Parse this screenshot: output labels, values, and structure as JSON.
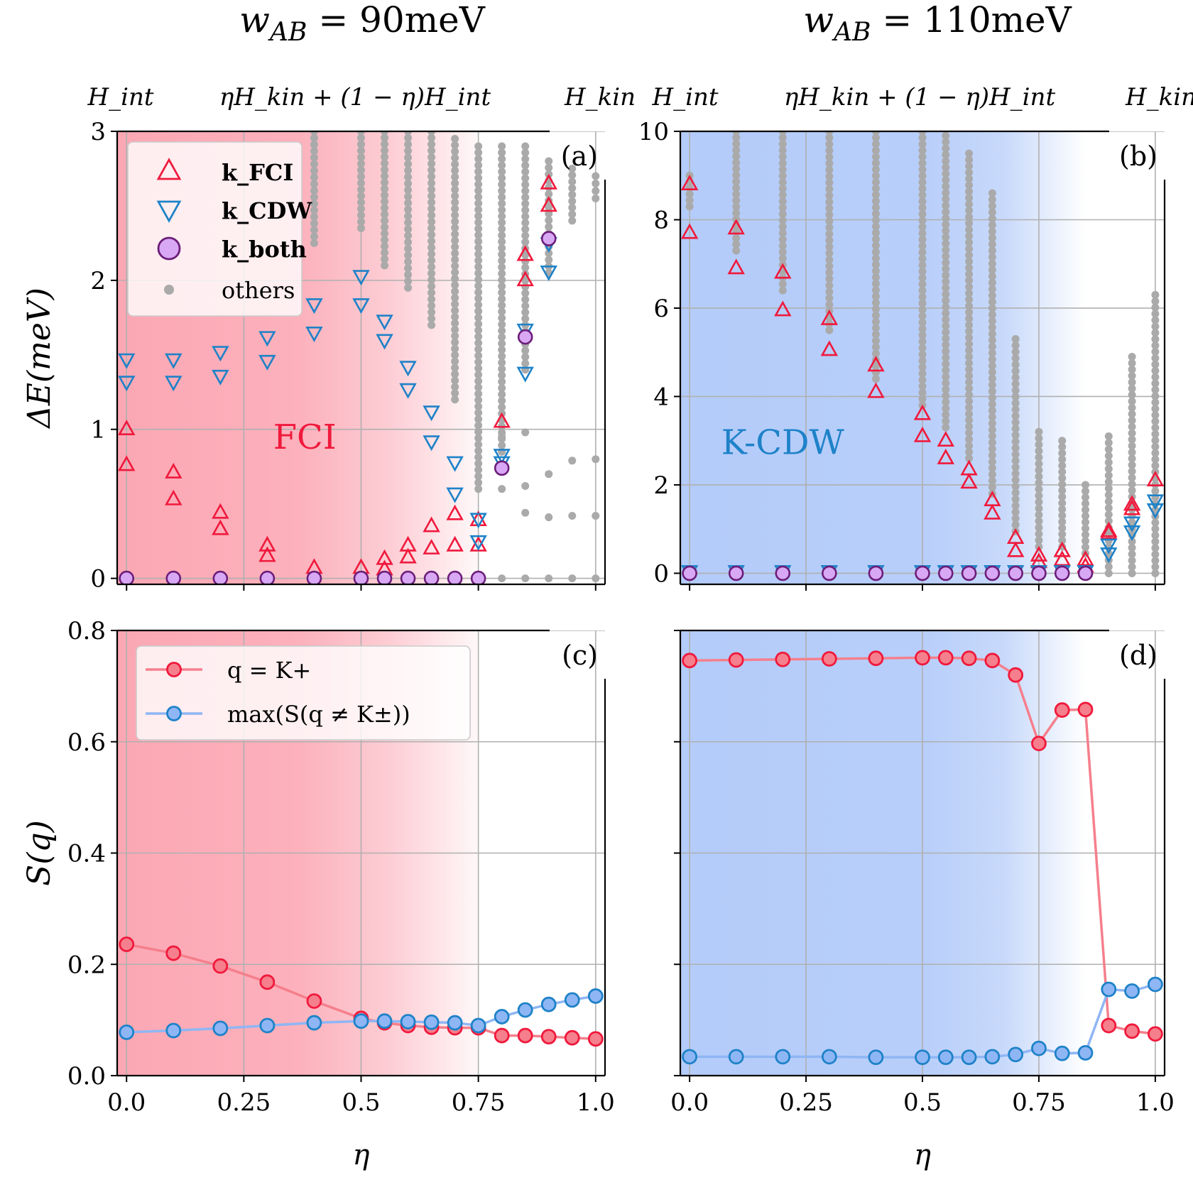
{
  "headers": {
    "left_title": "w_AB = 90meV",
    "right_title": "w_AB = 110meV",
    "left": {
      "pre": "w",
      "sub": "AB",
      "post": " = 90meV"
    },
    "right": {
      "pre": "w",
      "sub": "AB",
      "post": " = 110meV"
    },
    "h_int": "H_int",
    "h_mix": "ηH_kin + (1 − η)H_int",
    "h_kin": "H_kin"
  },
  "colors": {
    "fci": "#f0193c",
    "cdw": "#1e82c8",
    "both": "#6c1d7a",
    "both_fill": "#d8a8f4",
    "others": "#aaaaaa",
    "fci_shade": "#fba3b0",
    "cdw_shade": "#b0c9f9",
    "line_red": "#f57f8c",
    "line_blue": "#8fb6f4"
  },
  "chart_data": [
    {
      "panel": "(a)",
      "type": "scatter",
      "ylabel": "ΔE(meV)",
      "xlabel": "",
      "xlim": [
        -0.02,
        1.02
      ],
      "ylim": [
        -0.04,
        3.0
      ],
      "yticks": [
        0,
        1,
        2,
        3
      ],
      "xticks": [
        0,
        0.25,
        0.5,
        0.75,
        1.0
      ],
      "shade": {
        "label": "FCI",
        "from": 0.0,
        "to": 0.75,
        "kind": "fci"
      },
      "legend": [
        "k_FCI",
        "k_CDW",
        "k_both",
        "others"
      ],
      "series": [
        {
          "name": "k_FCI",
          "x": [
            0,
            0,
            0.1,
            0.1,
            0.2,
            0.2,
            0.3,
            0.3,
            0.4,
            0.5,
            0.55,
            0.55,
            0.6,
            0.6,
            0.65,
            0.65,
            0.7,
            0.7,
            0.75,
            0.75,
            0.8,
            0.85,
            0.85,
            0.9,
            0.9
          ],
          "y": [
            1.0,
            0.76,
            0.71,
            0.53,
            0.44,
            0.33,
            0.22,
            0.15,
            0.07,
            0.07,
            0.13,
            0.06,
            0.22,
            0.14,
            0.35,
            0.2,
            0.43,
            0.22,
            0.39,
            0.22,
            1.05,
            2.17,
            2.0,
            2.65,
            2.5
          ]
        },
        {
          "name": "k_CDW",
          "x": [
            0,
            0,
            0.1,
            0.1,
            0.2,
            0.2,
            0.3,
            0.3,
            0.4,
            0.4,
            0.5,
            0.5,
            0.55,
            0.55,
            0.6,
            0.6,
            0.65,
            0.65,
            0.7,
            0.7,
            0.75,
            0.75,
            0.8,
            0.8,
            0.85,
            0.85,
            0.9,
            0.9
          ],
          "y": [
            1.47,
            1.32,
            1.47,
            1.32,
            1.52,
            1.36,
            1.62,
            1.46,
            1.84,
            1.65,
            2.03,
            1.84,
            1.73,
            1.6,
            1.42,
            1.27,
            1.12,
            0.92,
            0.78,
            0.57,
            0.4,
            0.25,
            0.83,
            0.78,
            1.67,
            1.38,
            2.25,
            2.06
          ]
        },
        {
          "name": "k_both",
          "x": [
            0,
            0.1,
            0.2,
            0.3,
            0.4,
            0.5,
            0.55,
            0.6,
            0.65,
            0.7,
            0.75,
            0.8,
            0.85,
            0.9
          ],
          "y": [
            0,
            0,
            0,
            0,
            0,
            0,
            0,
            0,
            0,
            0,
            0,
            0.74,
            1.62,
            2.28
          ]
        }
      ],
      "others": [
        {
          "x": 0.4,
          "lo": 2.25,
          "hi": 3.0
        },
        {
          "x": 0.5,
          "lo": 2.35,
          "hi": 3.0
        },
        {
          "x": 0.55,
          "lo": 2.1,
          "hi": 3.0
        },
        {
          "x": 0.6,
          "lo": 1.95,
          "hi": 3.0
        },
        {
          "x": 0.65,
          "lo": 1.7,
          "hi": 3.0
        },
        {
          "x": 0.7,
          "lo": 1.2,
          "hi": 2.95
        },
        {
          "x": 0.75,
          "lo": 0.6,
          "hi": 2.9
        },
        {
          "x": 0.8,
          "lo": 0.85,
          "hi": 2.9
        },
        {
          "x": 0.85,
          "lo": 1.4,
          "hi": 2.9
        },
        {
          "x": 0.9,
          "lo": 2.05,
          "hi": 2.8
        },
        {
          "x": 0.95,
          "lo": 2.4,
          "hi": 2.75
        },
        {
          "x": 1.0,
          "lo": 2.55,
          "hi": 2.7
        }
      ],
      "others_points": [
        {
          "x": 0.8,
          "y": 0.95
        },
        {
          "x": 0.8,
          "y": 0.85
        },
        {
          "x": 0.8,
          "y": 0.6
        },
        {
          "x": 0.8,
          "y": 0.0
        },
        {
          "x": 0.85,
          "y": 0.98
        },
        {
          "x": 0.85,
          "y": 0.62
        },
        {
          "x": 0.85,
          "y": 0.44
        },
        {
          "x": 0.85,
          "y": 0.0
        },
        {
          "x": 0.9,
          "y": 0.7
        },
        {
          "x": 0.9,
          "y": 0.41
        },
        {
          "x": 0.9,
          "y": 0.0
        },
        {
          "x": 0.95,
          "y": 0.79
        },
        {
          "x": 0.95,
          "y": 0.42
        },
        {
          "x": 0.95,
          "y": 0.0
        },
        {
          "x": 1.0,
          "y": 0.8
        },
        {
          "x": 1.0,
          "y": 0.42
        },
        {
          "x": 1.0,
          "y": 0.0
        },
        {
          "x": 0.75,
          "y": 0.0
        },
        {
          "x": 0.7,
          "y": 0.0
        }
      ]
    },
    {
      "panel": "(b)",
      "type": "scatter",
      "ylabel": "",
      "xlabel": "",
      "xlim": [
        -0.02,
        1.02
      ],
      "ylim": [
        -0.25,
        10.0
      ],
      "yticks": [
        0,
        2,
        4,
        6,
        8,
        10
      ],
      "xticks": [
        0,
        0.25,
        0.5,
        0.75,
        1.0
      ],
      "shade": {
        "label": "K-CDW",
        "from": 0.0,
        "to": 0.85,
        "kind": "cdw"
      },
      "series": [
        {
          "name": "k_FCI",
          "x": [
            0,
            0,
            0.1,
            0.1,
            0.2,
            0.2,
            0.3,
            0.3,
            0.4,
            0.4,
            0.5,
            0.5,
            0.55,
            0.55,
            0.6,
            0.6,
            0.65,
            0.65,
            0.7,
            0.7,
            0.75,
            0.75,
            0.8,
            0.8,
            0.85,
            0.85,
            0.9,
            0.9,
            0.95,
            0.95,
            1.0
          ],
          "y": [
            8.8,
            7.7,
            7.8,
            6.9,
            6.8,
            5.95,
            5.75,
            5.05,
            4.7,
            4.1,
            3.6,
            3.1,
            3.0,
            2.6,
            2.35,
            2.05,
            1.65,
            1.35,
            0.8,
            0.5,
            0.4,
            0.25,
            0.5,
            0.3,
            0.3,
            0.15,
            0.9,
            0.95,
            1.55,
            1.45,
            2.1
          ]
        },
        {
          "name": "k_CDW",
          "x": [
            0,
            0.1,
            0.2,
            0.3,
            0.4,
            0.5,
            0.55,
            0.6,
            0.65,
            0.7,
            0.75,
            0.8,
            0.85,
            0.9,
            0.9,
            0.95,
            0.95,
            1.0,
            1.0
          ],
          "y": [
            0.05,
            0.05,
            0.05,
            0.05,
            0.05,
            0.05,
            0.05,
            0.05,
            0.05,
            0.05,
            0.05,
            0.05,
            0.05,
            0.65,
            0.45,
            1.15,
            0.95,
            1.65,
            1.45
          ]
        },
        {
          "name": "k_both",
          "x": [
            0,
            0.1,
            0.2,
            0.3,
            0.4,
            0.5,
            0.55,
            0.6,
            0.65,
            0.7,
            0.75,
            0.8,
            0.85
          ],
          "y": [
            0,
            0,
            0,
            0,
            0,
            0,
            0,
            0,
            0,
            0,
            0,
            0,
            0
          ]
        }
      ],
      "others": [
        {
          "x": 0.0,
          "lo": 8.3,
          "hi": 9.0
        },
        {
          "x": 0.1,
          "lo": 7.3,
          "hi": 10.0
        },
        {
          "x": 0.2,
          "lo": 6.4,
          "hi": 10.0
        },
        {
          "x": 0.3,
          "lo": 5.5,
          "hi": 10.0
        },
        {
          "x": 0.4,
          "lo": 4.4,
          "hi": 10.0
        },
        {
          "x": 0.5,
          "lo": 3.8,
          "hi": 10.0
        },
        {
          "x": 0.55,
          "lo": 3.3,
          "hi": 9.9
        },
        {
          "x": 0.6,
          "lo": 2.6,
          "hi": 9.5
        },
        {
          "x": 0.65,
          "lo": 1.8,
          "hi": 8.6
        },
        {
          "x": 0.7,
          "lo": 0.95,
          "hi": 5.3
        },
        {
          "x": 0.75,
          "lo": 0.6,
          "hi": 3.2
        },
        {
          "x": 0.8,
          "lo": 0.6,
          "hi": 3.0
        },
        {
          "x": 0.85,
          "lo": 0.45,
          "hi": 2.0
        },
        {
          "x": 0.9,
          "lo": 0.0,
          "hi": 3.1
        },
        {
          "x": 0.95,
          "lo": 0.0,
          "hi": 4.9
        },
        {
          "x": 1.0,
          "lo": 0.0,
          "hi": 6.3
        }
      ]
    },
    {
      "panel": "(c)",
      "type": "line",
      "ylabel": "S(q)",
      "xlabel": "η",
      "xlim": [
        -0.02,
        1.02
      ],
      "ylim": [
        0.0,
        0.8
      ],
      "yticks": [
        0.0,
        0.2,
        0.4,
        0.6,
        0.8
      ],
      "xticks": [
        0,
        0.25,
        0.5,
        0.75,
        1.0
      ],
      "xticklabels": [
        "0.0",
        "0.25",
        "0.5",
        "0.75",
        "1.0"
      ],
      "shade": {
        "label": "",
        "from": 0.0,
        "to": 0.75,
        "kind": "fci"
      },
      "legend": [
        "q = K+",
        "max(S(q ≠ K±))"
      ],
      "x": [
        0,
        0.1,
        0.2,
        0.3,
        0.4,
        0.5,
        0.55,
        0.6,
        0.65,
        0.7,
        0.75,
        0.8,
        0.85,
        0.9,
        0.95,
        1.0
      ],
      "series": [
        {
          "name": "q = K+",
          "values": [
            0.236,
            0.22,
            0.197,
            0.168,
            0.134,
            0.103,
            0.095,
            0.09,
            0.087,
            0.086,
            0.086,
            0.072,
            0.072,
            0.07,
            0.068,
            0.066
          ]
        },
        {
          "name": "max(S(q ≠ K±))",
          "values": [
            0.078,
            0.081,
            0.085,
            0.09,
            0.095,
            0.098,
            0.098,
            0.097,
            0.096,
            0.095,
            0.09,
            0.106,
            0.118,
            0.128,
            0.136,
            0.143
          ]
        }
      ]
    },
    {
      "panel": "(d)",
      "type": "line",
      "ylabel": "",
      "xlabel": "η",
      "xlim": [
        -0.02,
        1.02
      ],
      "ylim": [
        0.0,
        0.8
      ],
      "yticks": [
        0.0,
        0.2,
        0.4,
        0.6,
        0.8
      ],
      "xticks": [
        0,
        0.25,
        0.5,
        0.75,
        1.0
      ],
      "xticklabels": [
        "0.0",
        "0.25",
        "0.5",
        "0.75",
        "1.0"
      ],
      "shade": {
        "label": "",
        "from": 0.0,
        "to": 0.85,
        "kind": "cdw"
      },
      "x": [
        0,
        0.1,
        0.2,
        0.3,
        0.4,
        0.5,
        0.55,
        0.6,
        0.65,
        0.7,
        0.75,
        0.8,
        0.85,
        0.9,
        0.95,
        1.0
      ],
      "series": [
        {
          "name": "q = K+",
          "values": [
            0.746,
            0.747,
            0.748,
            0.749,
            0.75,
            0.751,
            0.751,
            0.75,
            0.746,
            0.72,
            0.597,
            0.657,
            0.658,
            0.09,
            0.08,
            0.075
          ]
        },
        {
          "name": "max(S(q ≠ K±))",
          "values": [
            0.034,
            0.034,
            0.034,
            0.034,
            0.033,
            0.033,
            0.033,
            0.033,
            0.034,
            0.038,
            0.049,
            0.04,
            0.041,
            0.155,
            0.152,
            0.164
          ]
        }
      ]
    }
  ]
}
